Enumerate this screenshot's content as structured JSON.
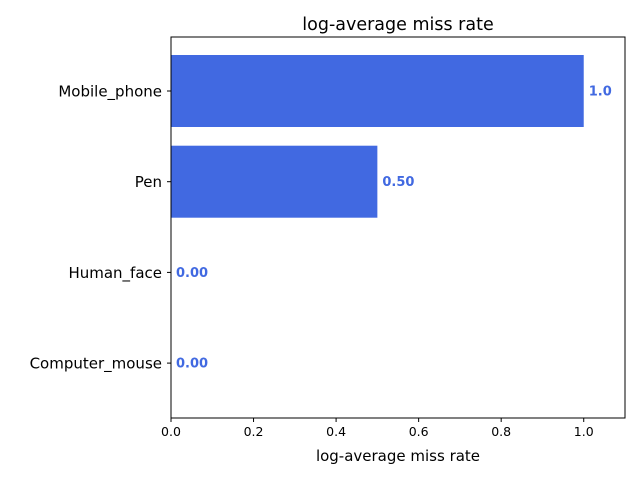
{
  "chart_data": {
    "type": "bar",
    "orientation": "horizontal",
    "title": "log-average miss rate",
    "xlabel": "log-average miss rate",
    "ylabel": "",
    "categories": [
      "Mobile_phone",
      "Pen",
      "Human_face",
      "Computer_mouse"
    ],
    "values": [
      1.0,
      0.5,
      0.0,
      0.0
    ],
    "value_labels": [
      "1.0",
      "0.50",
      "0.00",
      "0.00"
    ],
    "xlim": [
      0,
      1.1
    ],
    "xticks": [
      0.0,
      0.2,
      0.4,
      0.6,
      0.8,
      1.0
    ],
    "xtick_labels": [
      "0.0",
      "0.2",
      "0.4",
      "0.6",
      "0.8",
      "1.0"
    ],
    "bar_color": "#4169e1",
    "label_color": "#4169e1",
    "grid": false,
    "legend": "none"
  }
}
